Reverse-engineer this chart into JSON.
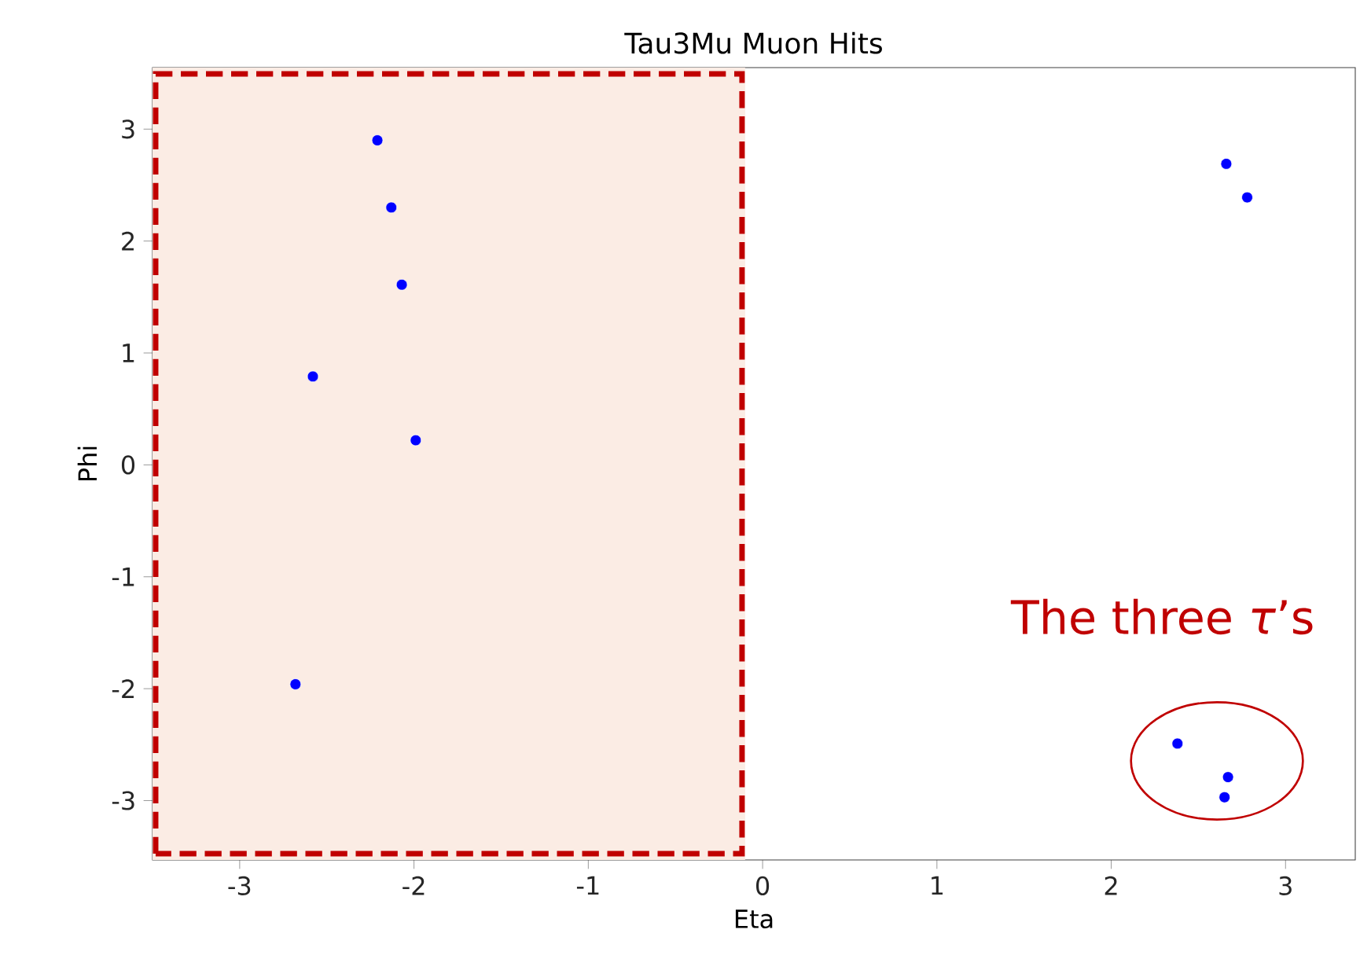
{
  "chart_data": {
    "type": "scatter",
    "title": "Tau3Mu Muon Hits",
    "xlabel": "Eta",
    "ylabel": "Phi",
    "x": [
      -2.21,
      -2.13,
      -2.07,
      -2.58,
      -1.99,
      -2.68,
      2.66,
      2.78,
      2.38,
      2.67,
      2.65
    ],
    "series": [
      {
        "color": "#0000ff",
        "values": [
          2.9,
          2.3,
          1.61,
          0.79,
          0.22,
          -1.96,
          2.69,
          2.39,
          -2.49,
          -2.79,
          -2.97
        ]
      }
    ],
    "marker": "circle",
    "xlim": [
      -3.5,
      3.4
    ],
    "ylim": [
      -3.53,
      3.55
    ],
    "xticks": [
      -3,
      -2,
      -1,
      0,
      1,
      2,
      3
    ],
    "yticks": [
      -3,
      -2,
      -1,
      0,
      1,
      2,
      3
    ],
    "bands": [
      {
        "axis": "x",
        "from": -3.5,
        "to": -0.1,
        "color": "#fbece4"
      }
    ],
    "annotations": [
      "The three *τ*’s"
    ]
  }
}
